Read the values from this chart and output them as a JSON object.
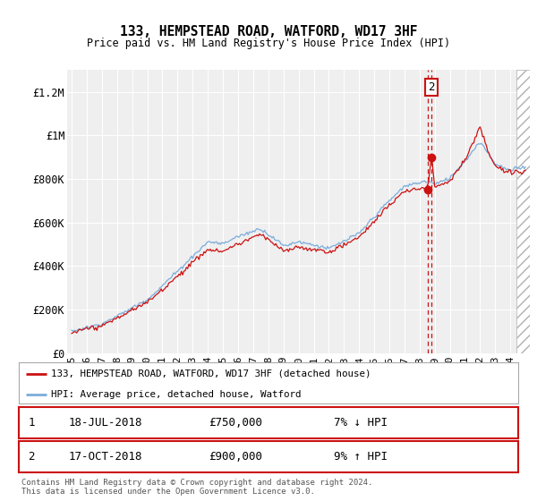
{
  "title": "133, HEMPSTEAD ROAD, WATFORD, WD17 3HF",
  "subtitle": "Price paid vs. HM Land Registry's House Price Index (HPI)",
  "ylabel_ticks": [
    "£0",
    "£200K",
    "£400K",
    "£600K",
    "£800K",
    "£1M",
    "£1.2M"
  ],
  "ytick_values": [
    0,
    200000,
    400000,
    600000,
    800000,
    1000000,
    1200000
  ],
  "ylim": [
    0,
    1300000
  ],
  "xlim_start": 1994.7,
  "xlim_end": 2025.3,
  "hpi_color": "#7aaddb",
  "price_color": "#cc1111",
  "transaction1": {
    "date": "18-JUL-2018",
    "price": 750000,
    "label": "1",
    "pct": "7%",
    "dir": "↓"
  },
  "transaction2": {
    "date": "17-OCT-2018",
    "price": 900000,
    "label": "2",
    "pct": "9%",
    "dir": "↑"
  },
  "legend_label_price": "133, HEMPSTEAD ROAD, WATFORD, WD17 3HF (detached house)",
  "legend_label_hpi": "HPI: Average price, detached house, Watford",
  "footnote": "Contains HM Land Registry data © Crown copyright and database right 2024.\nThis data is licensed under the Open Government Licence v3.0.",
  "background_color": "#ffffff",
  "plot_bg_color": "#efefef",
  "annotation_box_color": "#cc1111",
  "grid_color": "#ffffff",
  "xtick_years": [
    1995,
    1996,
    1997,
    1998,
    1999,
    2000,
    2001,
    2002,
    2003,
    2004,
    2005,
    2006,
    2007,
    2008,
    2009,
    2010,
    2011,
    2012,
    2013,
    2014,
    2015,
    2016,
    2017,
    2018,
    2019,
    2020,
    2021,
    2022,
    2023,
    2024
  ],
  "hatch_start": 2024.42
}
